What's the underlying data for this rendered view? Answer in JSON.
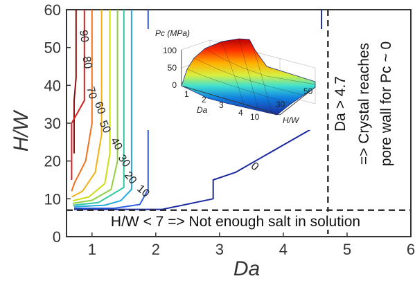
{
  "chart_data": {
    "type": "contour",
    "xlabel": "Da",
    "ylabel": "H/W",
    "xlim": [
      0.6,
      6
    ],
    "ylim": [
      0,
      60
    ],
    "xticks": [
      "1",
      "2",
      "3",
      "4",
      "5",
      "6"
    ],
    "yticks": [
      "0",
      "10",
      "20",
      "30",
      "40",
      "50",
      "60"
    ],
    "contours": [
      {
        "level": "90",
        "color": "#8b0f0f",
        "points": [
          [
            0.72,
            22
          ],
          [
            0.72,
            36
          ],
          [
            0.75,
            42
          ],
          [
            0.75,
            60
          ]
        ]
      },
      {
        "level": "80",
        "color": "#d42020",
        "points": [
          [
            0.68,
            15
          ],
          [
            0.68,
            30
          ],
          [
            0.88,
            36
          ],
          [
            0.88,
            60
          ]
        ]
      },
      {
        "level": "70",
        "color": "#f07020",
        "points": [
          [
            0.68,
            12
          ],
          [
            0.72,
            14
          ],
          [
            0.9,
            20
          ],
          [
            1.0,
            30
          ],
          [
            1.0,
            60
          ]
        ]
      },
      {
        "level": "60",
        "color": "#f5b010",
        "points": [
          [
            0.68,
            10.5
          ],
          [
            0.85,
            12
          ],
          [
            1.05,
            17
          ],
          [
            1.15,
            27
          ],
          [
            1.15,
            60
          ]
        ]
      },
      {
        "level": "50",
        "color": "#cddc10",
        "points": [
          [
            0.7,
            9.5
          ],
          [
            0.95,
            10.5
          ],
          [
            1.2,
            14
          ],
          [
            1.28,
            22
          ],
          [
            1.28,
            60
          ]
        ]
      },
      {
        "level": "40",
        "color": "#8dd040",
        "points": [
          [
            0.7,
            8.8
          ],
          [
            1.0,
            9.6
          ],
          [
            1.3,
            12.5
          ],
          [
            1.4,
            20
          ],
          [
            1.4,
            60
          ]
        ]
      },
      {
        "level": "30",
        "color": "#30c8a0",
        "points": [
          [
            0.7,
            8.3
          ],
          [
            1.1,
            9.0
          ],
          [
            1.5,
            13
          ],
          [
            1.5,
            60
          ]
        ]
      },
      {
        "level": "20",
        "color": "#20a8e0",
        "points": [
          [
            0.72,
            7.9
          ],
          [
            1.2,
            8.3
          ],
          [
            1.45,
            9.5
          ],
          [
            1.62,
            12.5
          ],
          [
            1.62,
            60
          ]
        ]
      },
      {
        "level": "10",
        "color": "#3060e0",
        "points": [
          [
            0.72,
            7.5
          ],
          [
            1.35,
            7.5
          ],
          [
            1.75,
            8.5
          ],
          [
            1.88,
            12.5
          ],
          [
            1.88,
            60
          ]
        ]
      },
      {
        "level": "0",
        "color": "#1a2aa0",
        "points": [
          [
            0.72,
            7.2
          ],
          [
            2.1,
            7.2
          ],
          [
            2.9,
            10
          ],
          [
            2.9,
            15
          ],
          [
            3.25,
            17
          ],
          [
            4.6,
            30
          ],
          [
            4.6,
            60
          ]
        ]
      }
    ],
    "contour_labels": [
      {
        "text": "90",
        "x": 0.87,
        "y": 53,
        "angle": 82
      },
      {
        "text": "80",
        "x": 0.92,
        "y": 46,
        "angle": 80
      },
      {
        "text": "70",
        "x": 0.99,
        "y": 38,
        "angle": 75
      },
      {
        "text": "60",
        "x": 1.12,
        "y": 34,
        "angle": 70
      },
      {
        "text": "50",
        "x": 1.2,
        "y": 29,
        "angle": 65
      },
      {
        "text": "40",
        "x": 1.38,
        "y": 24.5,
        "angle": 60
      },
      {
        "text": "30",
        "x": 1.5,
        "y": 20,
        "angle": 55
      },
      {
        "text": "20",
        "x": 1.6,
        "y": 15.5,
        "angle": 50
      },
      {
        "text": "10",
        "x": 1.8,
        "y": 12,
        "angle": 40
      },
      {
        "text": "0",
        "x": 3.55,
        "y": 18.5,
        "angle": 40
      }
    ],
    "h_line_y": 7,
    "v_line_x": 4.7,
    "annotation_bottom": "H/W < 7 => Not enough salt in solution",
    "annotation_right_line1": "Da > 4.7",
    "annotation_right_line2": "=> Crystal reaches",
    "annotation_right_line3": "pore wall for Pc ~ 0",
    "inset": {
      "title": "Pc (MPa)",
      "zticks": [
        "0",
        "50",
        "100"
      ],
      "da_ticks": [
        "1",
        "2",
        "3",
        "4"
      ],
      "hw_ticks": [
        "10",
        "30",
        "50"
      ],
      "da_label": "Da",
      "hw_label": "H/W"
    }
  }
}
